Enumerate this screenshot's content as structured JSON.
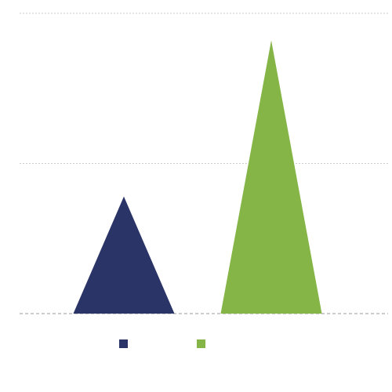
{
  "chart_data": {
    "type": "triangle",
    "categories": [
      null
    ],
    "series": [
      {
        "color": "#2b3467",
        "values": [
          39
        ]
      },
      {
        "color": "#84b546",
        "values": [
          91
        ]
      }
    ],
    "ylim": [
      0,
      100
    ],
    "yticks": [
      0,
      50,
      100
    ],
    "grid": true,
    "legend": "bottom"
  }
}
